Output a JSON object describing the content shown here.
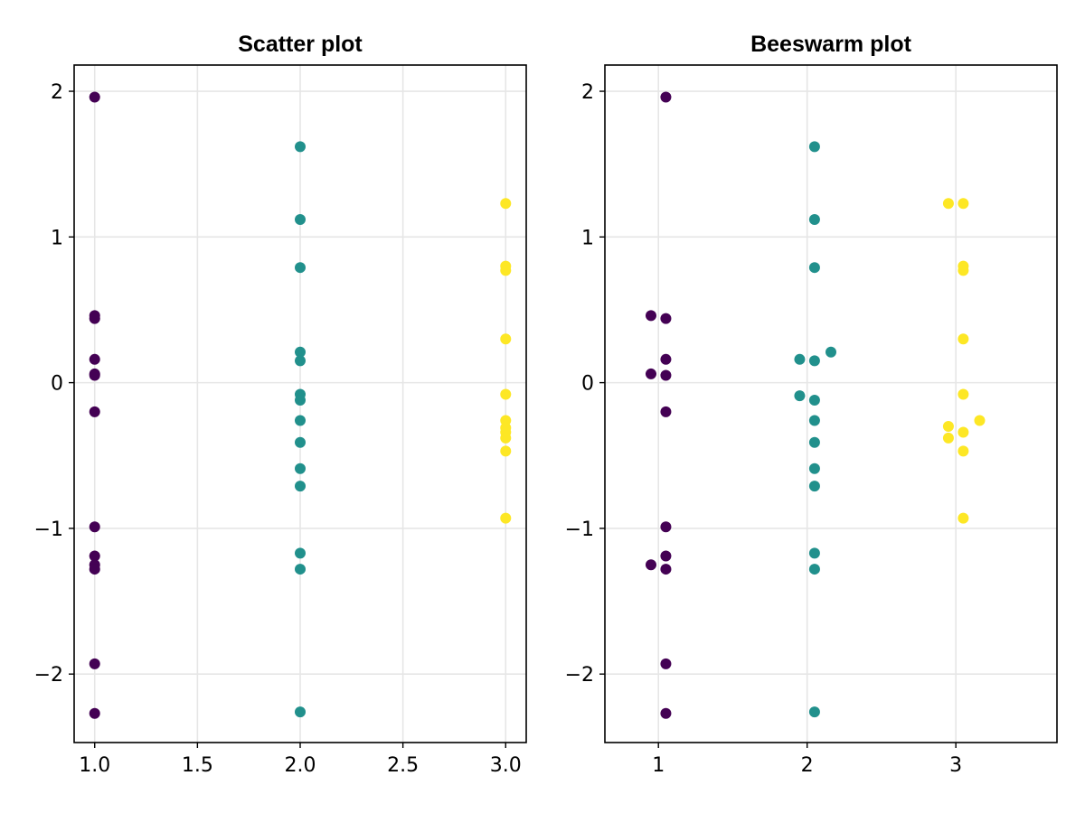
{
  "colors": {
    "group1": "#440154",
    "group2": "#21908c",
    "group3": "#fde725"
  },
  "chart_data": [
    {
      "type": "scatter",
      "title": "Scatter plot",
      "xlabel": "",
      "ylabel": "",
      "xlim": [
        0.9,
        3.1
      ],
      "ylim": [
        -2.47,
        2.18
      ],
      "xticks": [
        1.0,
        1.5,
        2.0,
        2.5,
        3.0
      ],
      "xtick_labels": [
        "1.0",
        "1.5",
        "2.0",
        "2.5",
        "3.0"
      ],
      "yticks": [
        -2,
        -1,
        0,
        1,
        2
      ],
      "ytick_labels": [
        "−2",
        "−1",
        "0",
        "1",
        "2"
      ],
      "grid": true,
      "series": [
        {
          "color_key": "group1",
          "points": [
            [
              1,
              1.96
            ],
            [
              1,
              0.46
            ],
            [
              1,
              0.44
            ],
            [
              1,
              0.16
            ],
            [
              1,
              0.06
            ],
            [
              1,
              0.05
            ],
            [
              1,
              -0.2
            ],
            [
              1,
              -0.99
            ],
            [
              1,
              -1.19
            ],
            [
              1,
              -1.25
            ],
            [
              1,
              -1.28
            ],
            [
              1,
              -1.93
            ],
            [
              1,
              -2.27
            ]
          ]
        },
        {
          "color_key": "group2",
          "points": [
            [
              2,
              1.62
            ],
            [
              2,
              1.12
            ],
            [
              2,
              0.79
            ],
            [
              2,
              0.21
            ],
            [
              2,
              0.15
            ],
            [
              2,
              -0.08
            ],
            [
              2,
              -0.12
            ],
            [
              2,
              -0.26
            ],
            [
              2,
              -0.41
            ],
            [
              2,
              -0.59
            ],
            [
              2,
              -0.71
            ],
            [
              2,
              -1.17
            ],
            [
              2,
              -1.28
            ],
            [
              2,
              -2.26
            ]
          ]
        },
        {
          "color_key": "group3",
          "points": [
            [
              3,
              1.23
            ],
            [
              3,
              0.8
            ],
            [
              3,
              0.77
            ],
            [
              3,
              0.3
            ],
            [
              3,
              -0.08
            ],
            [
              3,
              -0.26
            ],
            [
              3,
              -0.31
            ],
            [
              3,
              -0.34
            ],
            [
              3,
              -0.38
            ],
            [
              3,
              -0.47
            ],
            [
              3,
              -0.93
            ]
          ]
        }
      ]
    },
    {
      "type": "scatter",
      "title": "Beeswarm plot",
      "xlabel": "",
      "ylabel": "",
      "xlim": [
        0.64,
        3.68
      ],
      "ylim": [
        -2.47,
        2.18
      ],
      "xticks": [
        1,
        2,
        3
      ],
      "xtick_labels": [
        "1",
        "2",
        "3"
      ],
      "yticks": [
        -2,
        -1,
        0,
        1,
        2
      ],
      "ytick_labels": [
        "−2",
        "−1",
        "0",
        "1",
        "2"
      ],
      "grid": true,
      "series": [
        {
          "color_key": "group1",
          "points": [
            [
              1.05,
              1.96
            ],
            [
              0.95,
              0.46
            ],
            [
              1.05,
              0.44
            ],
            [
              1.05,
              0.16
            ],
            [
              0.95,
              0.06
            ],
            [
              1.05,
              0.05
            ],
            [
              1.05,
              -0.2
            ],
            [
              1.05,
              -0.99
            ],
            [
              1.05,
              -1.19
            ],
            [
              0.95,
              -1.25
            ],
            [
              1.05,
              -1.28
            ],
            [
              1.05,
              -1.93
            ],
            [
              1.05,
              -2.27
            ]
          ]
        },
        {
          "color_key": "group2",
          "points": [
            [
              2.05,
              1.62
            ],
            [
              2.05,
              1.12
            ],
            [
              2.05,
              0.79
            ],
            [
              2.16,
              0.21
            ],
            [
              1.95,
              0.16
            ],
            [
              2.05,
              0.15
            ],
            [
              1.95,
              -0.09
            ],
            [
              2.05,
              -0.12
            ],
            [
              2.05,
              -0.26
            ],
            [
              2.05,
              -0.41
            ],
            [
              2.05,
              -0.59
            ],
            [
              2.05,
              -0.71
            ],
            [
              2.05,
              -1.17
            ],
            [
              2.05,
              -1.28
            ],
            [
              2.05,
              -2.26
            ]
          ]
        },
        {
          "color_key": "group3",
          "points": [
            [
              2.95,
              1.23
            ],
            [
              3.05,
              1.23
            ],
            [
              3.05,
              0.8
            ],
            [
              3.05,
              0.77
            ],
            [
              3.05,
              0.3
            ],
            [
              3.05,
              -0.08
            ],
            [
              3.16,
              -0.26
            ],
            [
              2.95,
              -0.3
            ],
            [
              3.05,
              -0.34
            ],
            [
              2.95,
              -0.38
            ],
            [
              3.05,
              -0.47
            ],
            [
              3.05,
              -0.93
            ]
          ]
        }
      ]
    }
  ]
}
